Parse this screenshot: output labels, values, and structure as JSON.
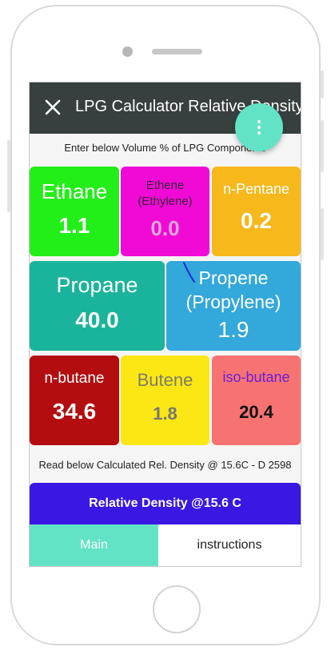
{
  "app": {
    "title": "LPG Calculator Relative Density",
    "instruction": "Enter below Volume % of LPG Components",
    "result_label": "Read below Calculated Rel. Density @ 15.6C - D 2598",
    "density_label": "Relative Density @15.6 C"
  },
  "components": [
    {
      "name": "Ethane",
      "value": "1.1",
      "bg": "#22ee18",
      "fg": "#ffffff",
      "value_fg": "#ffffff"
    },
    {
      "name": "Ethene\n(Ethylene)",
      "value": "0.0",
      "bg": "#f10ad6",
      "fg": "#3b1f3a",
      "value_fg": "#d8a8d4"
    },
    {
      "name": "n-Pentane",
      "value": "0.2",
      "bg": "#f7b81c",
      "fg": "#ffffff",
      "value_fg": "#ffffff"
    },
    {
      "name": "Propane",
      "value": "40.0",
      "bg": "#1ab49c",
      "fg": "#ffffff",
      "value_fg": "#ffffff"
    },
    {
      "name": "Propene\n(Propylene)",
      "value": "1.9",
      "bg": "#33a8db",
      "fg": "#ffffff",
      "value_fg": "#ffffff"
    },
    {
      "name": "n-butane",
      "value": "34.6",
      "bg": "#b30d10",
      "fg": "#ffffff",
      "value_fg": "#ffffff"
    },
    {
      "name": "Butene",
      "value": "1.8",
      "bg": "#fbe714",
      "fg": "#7d7d66",
      "value_fg": "#777777"
    },
    {
      "name": "iso-butane",
      "value": "20.4",
      "bg": "#f77372",
      "fg": "#6a1fd4",
      "value_fg": "#111111"
    }
  ],
  "tabs": {
    "main": "Main",
    "instructions": "instructions"
  },
  "icons": {
    "close": "close-icon",
    "menu": "more-vertical-icon"
  },
  "colors": {
    "appbar": "#37403f",
    "fab": "#63e3c6",
    "density_bar": "#3a17e3"
  }
}
